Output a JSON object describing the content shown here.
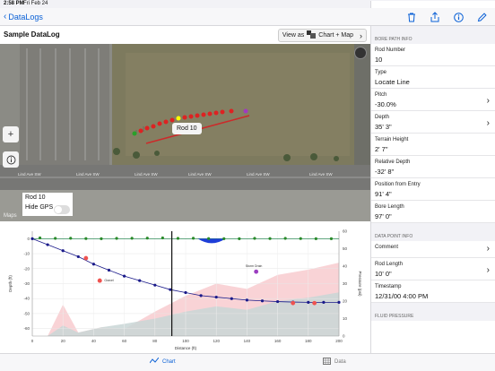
{
  "status": {
    "time": "2:58 PM",
    "date": "Fri Feb 24",
    "battery": ""
  },
  "nav": {
    "back_label": "DataLogs",
    "icons": [
      "trash-icon",
      "share-icon",
      "info-icon",
      "pencil-icon"
    ]
  },
  "log": {
    "title": "Sample DataLog",
    "view_as_label": "View as",
    "view_mode": "Chart + Map"
  },
  "map": {
    "popup_label": "Rod 10",
    "overlay": {
      "rod_label": "Rod 10",
      "hide_gps_label": "Hide GPS"
    },
    "attribution": "Maps",
    "street_labels": [
      "Lind Ave SW",
      "Lind Ave SW",
      "Lind Ave SW",
      "Lind Ave SW",
      "Lind Ave SW",
      "Lind Ave SW"
    ]
  },
  "chart_data": {
    "type": "line",
    "xlabel": "Distance (ft)",
    "ylabel": "Depth (ft)",
    "y2label": "Pressure (psi)",
    "xlim": [
      0,
      200
    ],
    "ylim": [
      -65,
      5
    ],
    "y2lim": [
      0,
      60
    ],
    "x_ticks": [
      0,
      20,
      40,
      60,
      80,
      100,
      120,
      140,
      160,
      180,
      200
    ],
    "y_ticks": [
      0,
      -10,
      -20,
      -30,
      -40,
      -50,
      -60
    ],
    "y2_ticks": [
      0,
      10,
      20,
      30,
      40,
      50,
      60
    ],
    "cursor_x": 91,
    "series": [
      {
        "color": "#1a1a8a",
        "x": [
          0,
          10,
          20,
          30,
          40,
          50,
          60,
          70,
          80,
          90,
          100,
          110,
          120,
          130,
          140,
          150,
          160,
          170,
          180,
          190,
          200
        ],
        "y": [
          0,
          -4,
          -8,
          -12,
          -17,
          -21,
          -25,
          -28,
          -31,
          -34,
          -36,
          -38,
          -39,
          -40,
          -41,
          -41.5,
          -42,
          -42.3,
          -42.5,
          -42.5,
          -42.5
        ]
      },
      {
        "color": "#2a8a2a",
        "x": [
          5,
          15,
          25,
          35,
          45,
          55,
          65,
          75,
          85,
          95,
          105,
          115,
          125,
          135,
          145,
          155,
          165,
          175,
          185,
          195
        ],
        "y": [
          0.5,
          0.2,
          0.3,
          0.1,
          0,
          0.2,
          0.3,
          0.4,
          0.5,
          0.2,
          0.3,
          0.1,
          0,
          0,
          0.2,
          0.1,
          0.2,
          0.1,
          0,
          0
        ]
      }
    ],
    "annotations": [
      "Gravel",
      "Storm Drain"
    ]
  },
  "bore_path": {
    "section_label": "BORE PATH INFO",
    "fields": [
      {
        "label": "Rod Number",
        "value": "10"
      },
      {
        "label": "Type",
        "value": "Locate Line"
      },
      {
        "label": "Pitch",
        "value": "-30.0%"
      },
      {
        "label": "Depth",
        "value": "35' 3\""
      },
      {
        "label": "Terrain Height",
        "value": "2' 7\""
      },
      {
        "label": "Relative Depth",
        "value": "-32' 8\""
      },
      {
        "label": "Position from Entry",
        "value": "91' 4\""
      },
      {
        "label": "Bore Length",
        "value": "97' 0\""
      }
    ]
  },
  "data_point": {
    "section_label": "DATA POINT INFO",
    "fields": [
      {
        "label": "Comment",
        "value": ""
      },
      {
        "label": "Rod Length",
        "value": "10' 0\""
      },
      {
        "label": "Timestamp",
        "value": "12/31/00 4:00 PM"
      }
    ]
  },
  "fluid_pressure": {
    "section_label": "FLUID PRESSURE"
  },
  "tabs": {
    "chart_label": "Chart",
    "data_label": "Data"
  }
}
